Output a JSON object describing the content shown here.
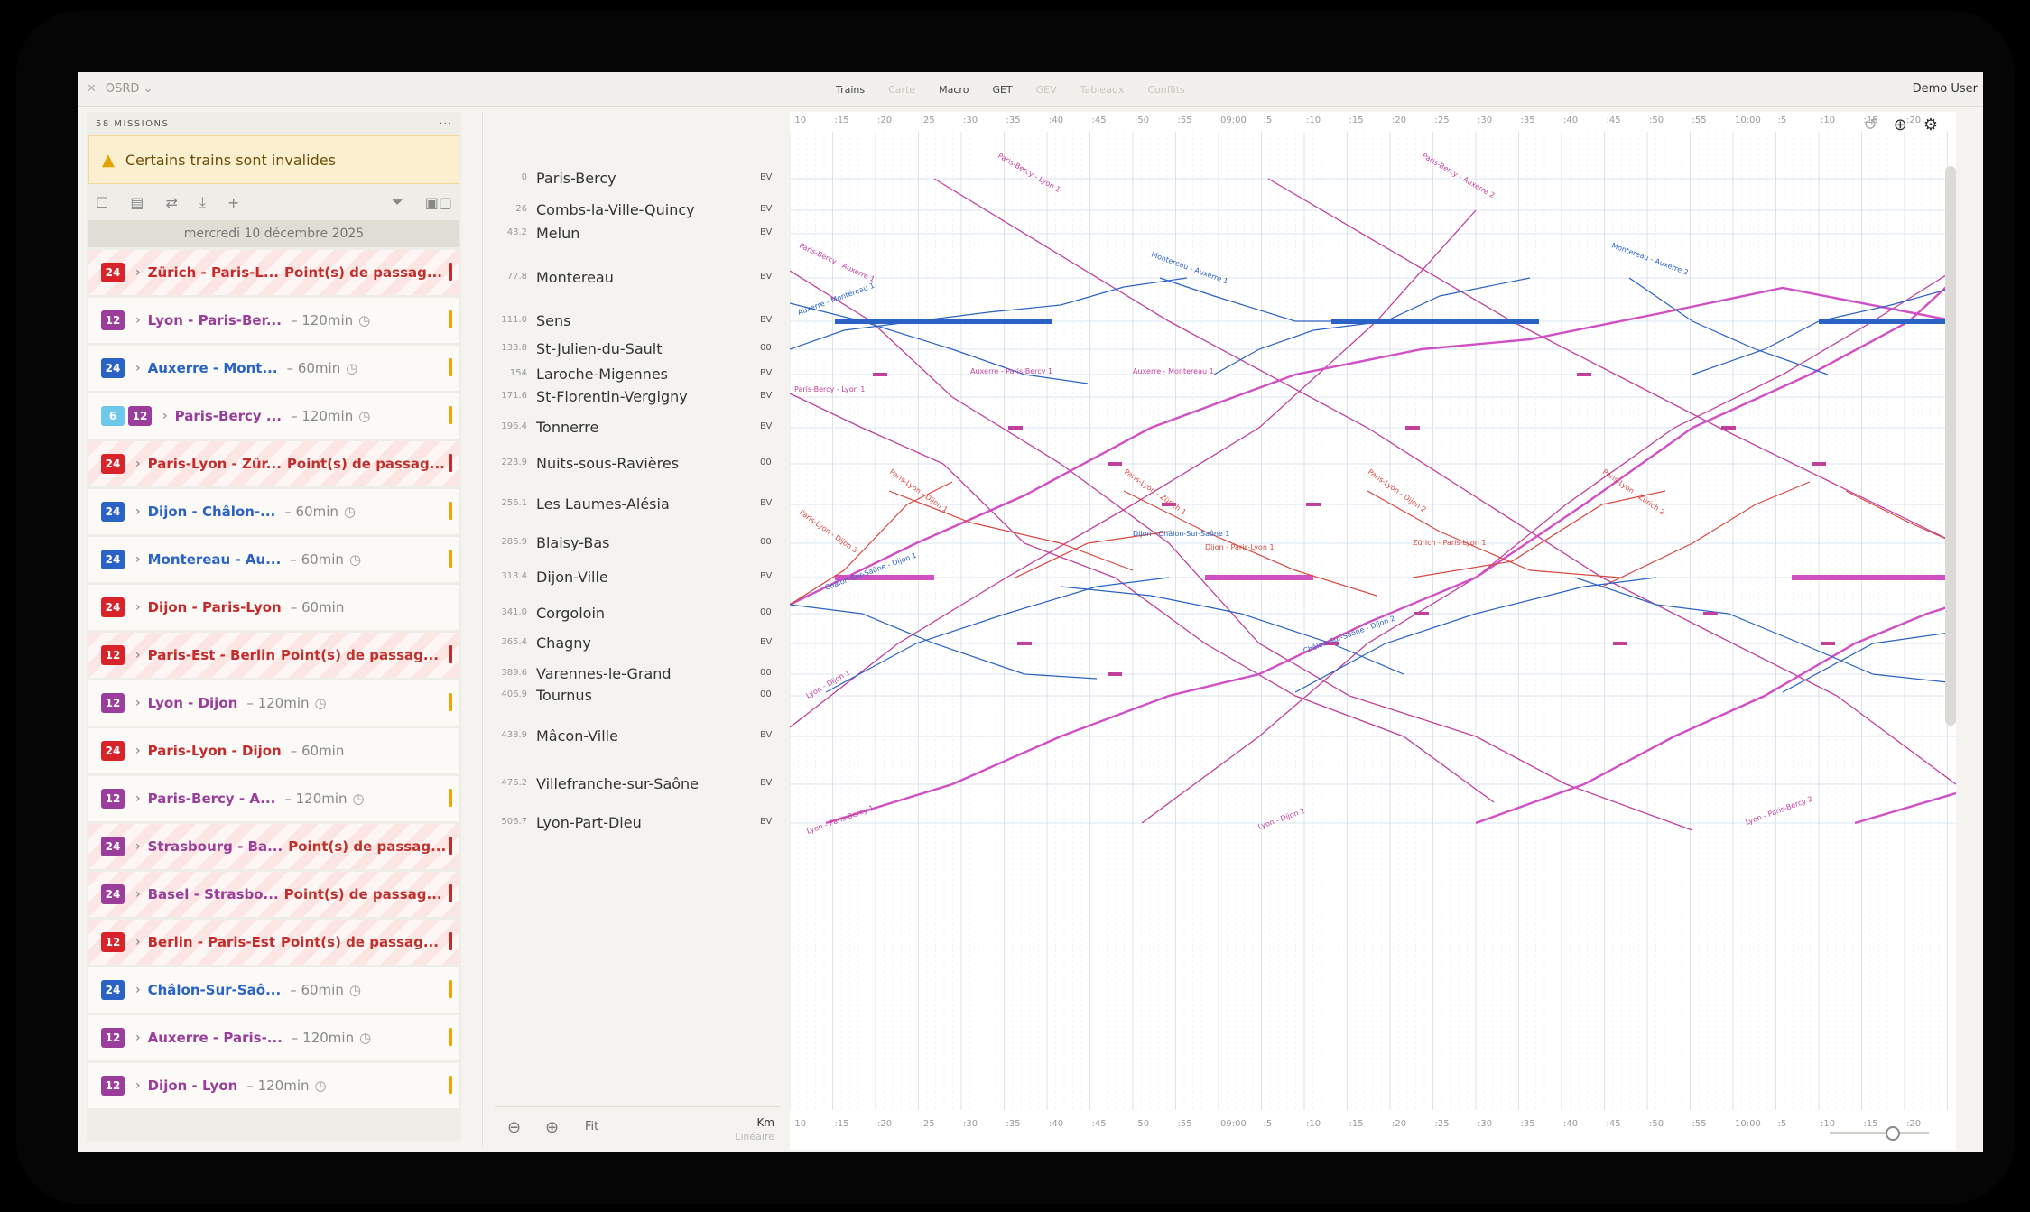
{
  "topbar": {
    "app_name": "OSRD ⌄",
    "nav_tabs": [
      {
        "label": "Trains",
        "dim": false
      },
      {
        "label": "Carte",
        "dim": true
      },
      {
        "label": "Macro",
        "dim": false
      },
      {
        "label": "GET",
        "dim": false
      },
      {
        "label": "GEV",
        "dim": true
      },
      {
        "label": "Tableaux",
        "dim": true
      },
      {
        "label": "Conflits",
        "dim": true
      }
    ],
    "user": "Demo User"
  },
  "left_panel": {
    "header": "58 MISSIONS",
    "warning": "Certains trains sont invalides",
    "date": "mercredi 10 décembre 2025",
    "missions": [
      {
        "badge": "24",
        "badge_color": "b24",
        "name": "Zürich - Paris-L...",
        "invalid": true,
        "status": "Point(s) de passag...",
        "name_color": "#c62b2b",
        "mark": "#c62b2b"
      },
      {
        "badge": "12",
        "badge_color": "b12",
        "name": "Lyon - Paris-Ber...",
        "invalid": false,
        "duration": "– 120min",
        "name_color": "#9a3d9b",
        "mark": "#f0a500"
      },
      {
        "badge": "24",
        "badge_color": "blue",
        "name": "Auxerre - Mont...",
        "invalid": false,
        "duration": "– 60min",
        "name_color": "#2b62c6",
        "mark": "#f0a500"
      },
      {
        "badge": "12",
        "badge_color": "b12",
        "extra_badge": "6",
        "name": "Paris-Bercy ...",
        "invalid": false,
        "duration": "– 120min",
        "name_color": "#9a3d9b",
        "mark": "#f0a500"
      },
      {
        "badge": "24",
        "badge_color": "b24",
        "name": "Paris-Lyon - Zür...",
        "invalid": true,
        "status": "Point(s) de passag...",
        "name_color": "#c62b2b",
        "mark": "#c62b2b"
      },
      {
        "badge": "24",
        "badge_color": "blue",
        "name": "Dijon - Châlon-...",
        "invalid": false,
        "duration": "– 60min",
        "name_color": "#2b62c6",
        "mark": "#f0a500"
      },
      {
        "badge": "24",
        "badge_color": "blue",
        "name": "Montereau - Au...",
        "invalid": false,
        "duration": "– 60min",
        "name_color": "#2b62c6",
        "mark": "#f0a500"
      },
      {
        "badge": "24",
        "badge_color": "b24",
        "name": "Dijon - Paris-Lyon",
        "invalid": false,
        "duration": "– 60min",
        "name_color": "#c62b2b",
        "mark": ""
      },
      {
        "badge": "12",
        "badge_color": "b24",
        "name": "Paris-Est - Berlin",
        "invalid": true,
        "status": "Point(s) de passag...",
        "name_color": "#c62b2b",
        "mark": "#c62b2b"
      },
      {
        "badge": "12",
        "badge_color": "b12",
        "name": "Lyon - Dijon",
        "invalid": false,
        "duration": "– 120min",
        "name_color": "#9a3d9b",
        "mark": "#f0a500"
      },
      {
        "badge": "24",
        "badge_color": "b24",
        "name": "Paris-Lyon - Dijon",
        "invalid": false,
        "duration": "– 60min",
        "name_color": "#c62b2b",
        "mark": ""
      },
      {
        "badge": "12",
        "badge_color": "b12",
        "name": "Paris-Bercy - A...",
        "invalid": false,
        "duration": "– 120min",
        "name_color": "#9a3d9b",
        "mark": "#f0a500"
      },
      {
        "badge": "24",
        "badge_color": "b12",
        "name": "Strasbourg - Ba...",
        "invalid": true,
        "status": "Point(s) de passag...",
        "name_color": "#9a3d9b",
        "mark": "#c62b2b"
      },
      {
        "badge": "24",
        "badge_color": "b12",
        "name": "Basel - Strasbo...",
        "invalid": true,
        "status": "Point(s) de passag...",
        "name_color": "#9a3d9b",
        "mark": "#c62b2b"
      },
      {
        "badge": "12",
        "badge_color": "b24",
        "name": "Berlin - Paris-Est",
        "invalid": true,
        "status": "Point(s) de passag...",
        "name_color": "#c62b2b",
        "mark": "#c62b2b"
      },
      {
        "badge": "24",
        "badge_color": "blue",
        "name": "Châlon-Sur-Saô...",
        "invalid": false,
        "duration": "– 60min",
        "name_color": "#2b62c6",
        "mark": "#f0a500"
      },
      {
        "badge": "12",
        "badge_color": "b12",
        "name": "Auxerre - Paris-...",
        "invalid": false,
        "duration": "– 120min",
        "name_color": "#9a3d9b",
        "mark": "#f0a500"
      },
      {
        "badge": "12",
        "badge_color": "b12",
        "name": "Dijon - Lyon",
        "invalid": false,
        "duration": "– 120min",
        "name_color": "#9a3d9b",
        "mark": "#f0a500"
      }
    ]
  },
  "stations": [
    {
      "km": "0",
      "name": "Paris-Bercy",
      "code": "BV"
    },
    {
      "km": "26",
      "name": "Combs-la-Ville-Quincy",
      "code": "BV"
    },
    {
      "km": "43.2",
      "name": "Melun",
      "code": "BV"
    },
    {
      "km": "77.8",
      "name": "Montereau",
      "code": "BV"
    },
    {
      "km": "111.0",
      "name": "Sens",
      "code": "BV"
    },
    {
      "km": "133.8",
      "name": "St-Julien-du-Sault",
      "code": "00"
    },
    {
      "km": "154",
      "name": "Laroche-Migennes",
      "code": "BV"
    },
    {
      "km": "171.6",
      "name": "St-Florentin-Vergigny",
      "code": "BV"
    },
    {
      "km": "196.4",
      "name": "Tonnerre",
      "code": "BV"
    },
    {
      "km": "223.9",
      "name": "Nuits-sous-Ravières",
      "code": "00"
    },
    {
      "km": "256.1",
      "name": "Les Laumes-Alésia",
      "code": "BV"
    },
    {
      "km": "286.9",
      "name": "Blaisy-Bas",
      "code": "00"
    },
    {
      "km": "313.4",
      "name": "Dijon-Ville",
      "code": "BV"
    },
    {
      "km": "341.0",
      "name": "Corgoloin",
      "code": "00"
    },
    {
      "km": "365.4",
      "name": "Chagny",
      "code": "BV"
    },
    {
      "km": "389.6",
      "name": "Varennes-le-Grand",
      "code": "00"
    },
    {
      "km": "406.9",
      "name": "Tournus",
      "code": "00"
    },
    {
      "km": "438.9",
      "name": "Mâcon-Ville",
      "code": "BV"
    },
    {
      "km": "476.2",
      "name": "Villefranche-sur-Saône",
      "code": "BV"
    },
    {
      "km": "506.7",
      "name": "Lyon-Part-Dieu",
      "code": "BV"
    }
  ],
  "axis_footer": {
    "fit": "Fit",
    "km": "Km",
    "scale": "Linéaire"
  },
  "time_ticks": [
    ":10",
    ":15",
    ":20",
    ":25",
    ":30",
    ":35",
    ":40",
    ":45",
    ":50",
    ":55",
    "09:00",
    ":5",
    ":10",
    ":15",
    ":20",
    ":25",
    ":30",
    ":35",
    ":40",
    ":45",
    ":50",
    ":55",
    "10:00",
    ":5",
    ":10",
    ":15",
    ":20"
  ],
  "train_labels": [
    {
      "text": "Paris-Bercy - Lyon 1",
      "color": "#c0409c"
    },
    {
      "text": "Paris-Bercy - Auxerre 2",
      "color": "#c0409c"
    },
    {
      "text": "Paris-Bercy - Auxerre 1",
      "color": "#c0409c"
    },
    {
      "text": "Montereau - Auxerre 1",
      "color": "#2b62c6"
    },
    {
      "text": "Montereau - Auxerre 2",
      "color": "#2b62c6"
    },
    {
      "text": "Auxerre - Montereau 1",
      "color": "#2b62c6"
    },
    {
      "text": "Auxerre - Paris-Bercy 1",
      "color": "#c0409c"
    },
    {
      "text": "Auxerre - Montereau 1",
      "color": "#c0409c"
    },
    {
      "text": "Paris-Bercy - Lyon 1",
      "color": "#c0409c"
    },
    {
      "text": "Paris-Lyon - Dijon 1",
      "color": "#d8473f"
    },
    {
      "text": "Paris-Lyon - Zürich 1",
      "color": "#d8473f"
    },
    {
      "text": "Paris-Lyon - Dijon 2",
      "color": "#d8473f"
    },
    {
      "text": "Paris-Lyon - Zürich 2",
      "color": "#d8473f"
    },
    {
      "text": "Paris-Lyon - Dijon 3",
      "color": "#d8473f"
    },
    {
      "text": "Dijon - Paris-Lyon 1",
      "color": "#d8473f"
    },
    {
      "text": "Zürich - Paris-Lyon 1",
      "color": "#d8473f"
    },
    {
      "text": "Dijon - Châlon-Sur-Saône 1",
      "color": "#2b62c6"
    },
    {
      "text": "Châlon-Sur-Saône - Dijon 1",
      "color": "#2b62c6"
    },
    {
      "text": "Châlon-Sur-Saône - Dijon 2",
      "color": "#2b62c6"
    },
    {
      "text": "Lyon - Dijon 1",
      "color": "#c0409c"
    },
    {
      "text": "Lyon - Paris-Bercy 1",
      "color": "#c0409c"
    },
    {
      "text": "Lyon - Dijon 2",
      "color": "#c0409c"
    },
    {
      "text": "Lyon - Paris-Bercy 2",
      "color": "#c0409c"
    }
  ],
  "colors": {
    "tgv": "#c0409c",
    "regional": "#2b62c6",
    "intl": "#d8473f",
    "pink_heavy": "#d04fc4"
  }
}
